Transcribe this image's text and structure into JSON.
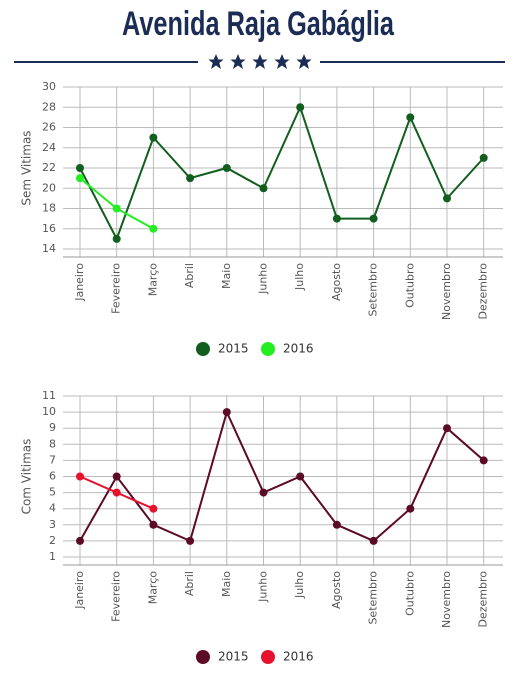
{
  "title": "Avenida Raja Gabáglia",
  "chart_data": [
    {
      "type": "line",
      "ylabel": "Sem Vitimas",
      "categories": [
        "Janeiro",
        "Fevereiro",
        "Março",
        "Abril",
        "Maio",
        "Junho",
        "Julho",
        "Agosto",
        "Setembro",
        "Outubro",
        "Novembro",
        "Dezembro"
      ],
      "series": [
        {
          "name": "2015",
          "color": "#125e1e",
          "values": [
            22,
            15,
            25,
            21,
            22,
            20,
            28,
            17,
            17,
            27,
            19,
            23
          ]
        },
        {
          "name": "2016",
          "color": "#22ee22",
          "values": [
            21,
            18,
            16,
            null,
            null,
            null,
            null,
            null,
            null,
            null,
            null,
            null
          ]
        }
      ],
      "ylim": [
        14,
        30
      ],
      "yticks": [
        14,
        16,
        18,
        20,
        22,
        24,
        26,
        28,
        30
      ],
      "grid": true,
      "legend": "bottom"
    },
    {
      "type": "line",
      "ylabel": "Com Vitimas",
      "categories": [
        "Janeiro",
        "Fevereiro",
        "Março",
        "Abril",
        "Maio",
        "Junho",
        "Julho",
        "Agosto",
        "Setembro",
        "Outubro",
        "Novembro",
        "Dezembro"
      ],
      "series": [
        {
          "name": "2015",
          "color": "#5c0a25",
          "values": [
            2,
            6,
            3,
            2,
            10,
            5,
            6,
            3,
            2,
            4,
            9,
            7
          ]
        },
        {
          "name": "2016",
          "color": "#e8112d",
          "values": [
            6,
            5,
            4,
            null,
            null,
            null,
            null,
            null,
            null,
            null,
            null,
            null
          ]
        }
      ],
      "ylim": [
        1,
        11
      ],
      "yticks": [
        1,
        2,
        3,
        4,
        5,
        6,
        7,
        8,
        9,
        10,
        11
      ],
      "grid": true,
      "legend": "bottom"
    }
  ]
}
